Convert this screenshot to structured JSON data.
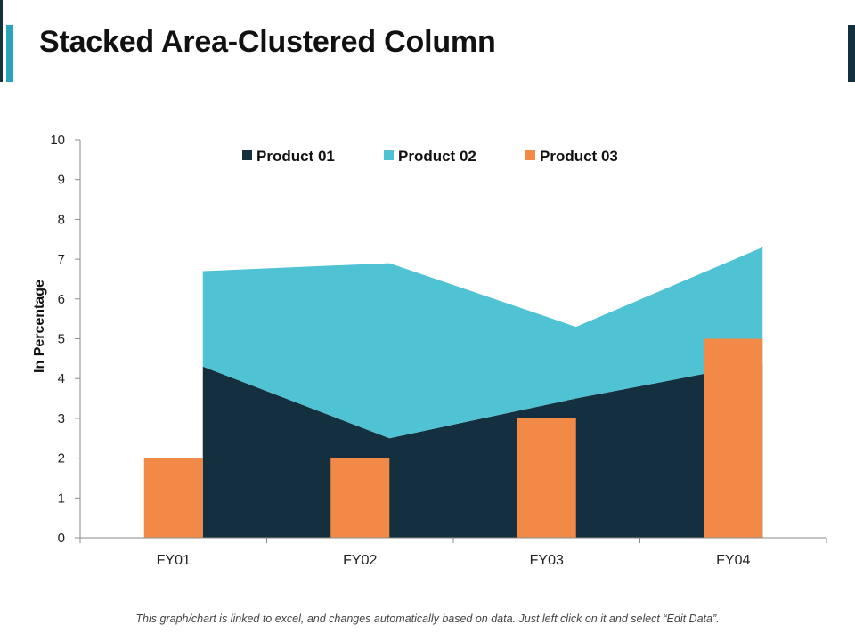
{
  "page": {
    "title": "Stacked Area-Clustered Column",
    "footnote": "This graph/chart is linked to excel, and changes automatically based on data. Just left click on it and select “Edit Data”."
  },
  "colors": {
    "product_01": "#14303f",
    "product_02": "#4fc3d3",
    "product_03": "#f28a47",
    "accent_dark": "#14303f",
    "accent_light": "#2aa3bd",
    "axis": "#8a8a8a"
  },
  "chart_data": {
    "type": "bar",
    "subtype": "stacked-area + clustered-column combo",
    "title": "",
    "xlabel": "",
    "ylabel": "In Percentage",
    "ylim": [
      0,
      10
    ],
    "yticks": [
      0,
      1,
      2,
      3,
      4,
      5,
      6,
      7,
      8,
      9,
      10
    ],
    "categories": [
      "FY01",
      "FY02",
      "FY03",
      "FY04"
    ],
    "legend_position": "top-center",
    "grid": false,
    "series": [
      {
        "name": "Product 01",
        "type": "stacked-area",
        "values": [
          4.3,
          2.5,
          3.5,
          4.4
        ]
      },
      {
        "name": "Product 02",
        "type": "stacked-area",
        "values": [
          2.4,
          4.4,
          1.8,
          2.9
        ]
      },
      {
        "name": "Product 03",
        "type": "column",
        "values": [
          2,
          2,
          3,
          5
        ]
      }
    ]
  }
}
